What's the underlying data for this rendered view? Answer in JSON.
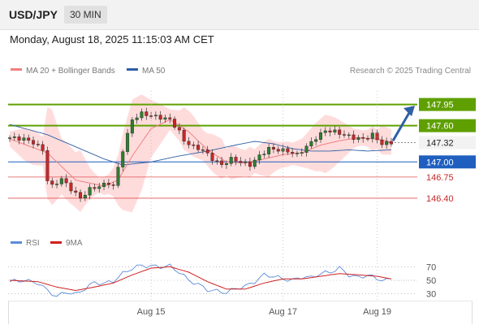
{
  "header": {
    "symbol": "USD/JPY",
    "timeframe": "30 MIN"
  },
  "datetime": "Monday, August 18, 2025 11:15:03 AM CET",
  "legend": {
    "ma20_bb": "MA 20 + Bollinger Bands",
    "ma50": "MA 50",
    "source": "Research © 2025 Trading Central",
    "rsi": "RSI",
    "rsi_ma": "9MA"
  },
  "colors": {
    "up": "#2e7d32",
    "down": "#c62828",
    "band": "#ffd6d6",
    "ma20": "#f08080",
    "ma50": "#2f5fa5",
    "green_level": "#5fa000",
    "blue_level": "#1f5fbf",
    "red_level": "#e05050",
    "arrow": "#2f5fa5"
  },
  "chart_data": {
    "type": "candlestick",
    "ylim": [
      146.05,
      148.2
    ],
    "levels": [
      {
        "label": "147.95",
        "value": 147.95,
        "style": "green"
      },
      {
        "label": "147.60",
        "value": 147.6,
        "style": "green"
      },
      {
        "label": "147.32",
        "value": 147.32,
        "style": "current"
      },
      {
        "label": "147.00",
        "value": 147.0,
        "style": "blue"
      },
      {
        "label": "146.75",
        "value": 146.75,
        "style": "red"
      },
      {
        "label": "146.40",
        "value": 146.4,
        "style": "red"
      }
    ],
    "x_ticks": [
      "Aug 15",
      "Aug 17",
      "Aug 19"
    ],
    "x_tick_positions": [
      30,
      58,
      78
    ],
    "candles_count": 82,
    "close_path": [
      [
        0,
        147.4
      ],
      [
        3,
        147.38
      ],
      [
        5,
        147.32
      ],
      [
        7,
        147.2
      ],
      [
        8,
        146.7
      ],
      [
        9,
        146.6
      ],
      [
        11,
        146.72
      ],
      [
        13,
        146.55
      ],
      [
        15,
        146.4
      ],
      [
        17,
        146.55
      ],
      [
        19,
        146.6
      ],
      [
        21,
        146.65
      ],
      [
        22,
        146.6
      ],
      [
        23,
        146.9
      ],
      [
        24,
        147.2
      ],
      [
        25,
        147.45
      ],
      [
        26,
        147.7
      ],
      [
        28,
        147.8
      ],
      [
        31,
        147.75
      ],
      [
        34,
        147.7
      ],
      [
        36,
        147.5
      ],
      [
        37,
        147.35
      ],
      [
        39,
        147.25
      ],
      [
        41,
        147.2
      ],
      [
        43,
        147.05
      ],
      [
        45,
        146.95
      ],
      [
        47,
        147.05
      ],
      [
        49,
        147.0
      ],
      [
        51,
        146.95
      ],
      [
        53,
        147.1
      ],
      [
        55,
        147.22
      ],
      [
        57,
        147.2
      ],
      [
        59,
        147.18
      ],
      [
        61,
        147.12
      ],
      [
        63,
        147.25
      ],
      [
        65,
        147.4
      ],
      [
        67,
        147.52
      ],
      [
        69,
        147.5
      ],
      [
        71,
        147.45
      ],
      [
        73,
        147.4
      ],
      [
        75,
        147.38
      ],
      [
        77,
        147.45
      ],
      [
        79,
        147.3
      ],
      [
        81,
        147.32
      ]
    ],
    "ma20_path": [
      [
        0,
        147.38
      ],
      [
        8,
        147.15
      ],
      [
        14,
        146.7
      ],
      [
        20,
        146.6
      ],
      [
        23,
        146.7
      ],
      [
        26,
        147.1
      ],
      [
        30,
        147.55
      ],
      [
        34,
        147.7
      ],
      [
        38,
        147.5
      ],
      [
        42,
        147.2
      ],
      [
        46,
        147.0
      ],
      [
        50,
        146.98
      ],
      [
        54,
        147.05
      ],
      [
        58,
        147.12
      ],
      [
        62,
        147.15
      ],
      [
        66,
        147.28
      ],
      [
        70,
        147.35
      ],
      [
        74,
        147.4
      ],
      [
        78,
        147.38
      ],
      [
        81,
        147.33
      ]
    ],
    "ma50_path": [
      [
        0,
        147.62
      ],
      [
        8,
        147.45
      ],
      [
        14,
        147.25
      ],
      [
        20,
        147.05
      ],
      [
        24,
        146.95
      ],
      [
        30,
        147.0
      ],
      [
        36,
        147.1
      ],
      [
        42,
        147.18
      ],
      [
        48,
        147.28
      ],
      [
        52,
        147.34
      ],
      [
        56,
        147.3
      ],
      [
        60,
        147.22
      ],
      [
        64,
        147.18
      ],
      [
        68,
        147.18
      ],
      [
        72,
        147.2
      ],
      [
        76,
        147.18
      ],
      [
        81,
        147.2
      ]
    ],
    "rsi": {
      "ylim": [
        20,
        80
      ],
      "ticks": [
        "70",
        "50",
        "30"
      ],
      "tick_values": [
        70,
        50,
        30
      ],
      "rsi_path": [
        [
          0,
          48
        ],
        [
          3,
          50
        ],
        [
          6,
          46
        ],
        [
          8,
          35
        ],
        [
          10,
          26
        ],
        [
          12,
          33
        ],
        [
          14,
          29
        ],
        [
          16,
          38
        ],
        [
          18,
          47
        ],
        [
          20,
          45
        ],
        [
          22,
          49
        ],
        [
          24,
          60
        ],
        [
          26,
          68
        ],
        [
          28,
          72
        ],
        [
          30,
          71
        ],
        [
          32,
          70
        ],
        [
          34,
          71
        ],
        [
          36,
          62
        ],
        [
          38,
          50
        ],
        [
          40,
          44
        ],
        [
          42,
          36
        ],
        [
          44,
          34
        ],
        [
          46,
          32
        ],
        [
          48,
          38
        ],
        [
          50,
          41
        ],
        [
          52,
          48
        ],
        [
          54,
          58
        ],
        [
          56,
          56
        ],
        [
          58,
          52
        ],
        [
          60,
          50
        ],
        [
          62,
          55
        ],
        [
          64,
          54
        ],
        [
          66,
          60
        ],
        [
          68,
          62
        ],
        [
          70,
          68
        ],
        [
          72,
          58
        ],
        [
          74,
          54
        ],
        [
          76,
          58
        ],
        [
          78,
          52
        ],
        [
          80,
          50
        ],
        [
          81,
          52
        ]
      ],
      "ma_path": [
        [
          0,
          50
        ],
        [
          6,
          48
        ],
        [
          10,
          40
        ],
        [
          14,
          35
        ],
        [
          18,
          40
        ],
        [
          22,
          46
        ],
        [
          26,
          58
        ],
        [
          30,
          68
        ],
        [
          34,
          70
        ],
        [
          38,
          62
        ],
        [
          42,
          48
        ],
        [
          46,
          37
        ],
        [
          50,
          37
        ],
        [
          54,
          46
        ],
        [
          58,
          52
        ],
        [
          62,
          52
        ],
        [
          66,
          56
        ],
        [
          70,
          60
        ],
        [
          74,
          58
        ],
        [
          78,
          56
        ],
        [
          81,
          52
        ]
      ]
    }
  }
}
